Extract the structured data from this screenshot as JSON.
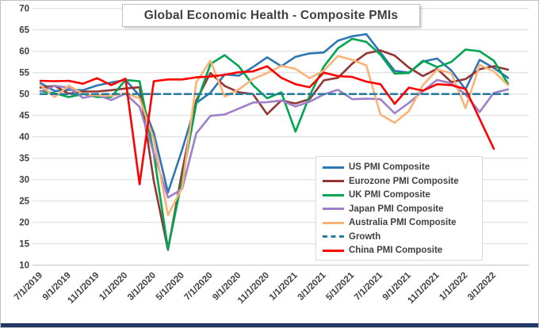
{
  "title": "Global Economic Health - Composite PMIs",
  "colors": {
    "background": "#FFFFFF",
    "grid": "#D9D9D9",
    "axis_line": "#BFBFBF",
    "axis_text": "#404040",
    "title_text": "#404040",
    "border": "#BFBFBF",
    "footer_strip": "#1F3864"
  },
  "chart_data": {
    "type": "line",
    "title": "Global Economic Health - Composite PMIs",
    "xlabel": "",
    "ylabel": "",
    "ylim": [
      10,
      70
    ],
    "y_ticks": [
      10,
      15,
      20,
      25,
      30,
      35,
      40,
      45,
      50,
      55,
      60,
      65,
      70
    ],
    "grid": "horizontal",
    "legend_position": "right-center",
    "x": [
      "7/1/2019",
      "8/1/2019",
      "9/1/2019",
      "10/1/2019",
      "11/1/2019",
      "12/1/2019",
      "1/1/2020",
      "2/1/2020",
      "3/1/2020",
      "4/1/2020",
      "5/1/2020",
      "6/1/2020",
      "7/1/2020",
      "8/1/2020",
      "9/1/2020",
      "10/1/2020",
      "11/1/2020",
      "12/1/2020",
      "1/1/2021",
      "2/1/2021",
      "3/1/2021",
      "4/1/2021",
      "5/1/2021",
      "6/1/2021",
      "7/1/2021",
      "8/1/2021",
      "9/1/2021",
      "10/1/2021",
      "11/1/2021",
      "12/1/2021",
      "1/1/2022",
      "2/1/2022",
      "3/1/2022",
      "4/1/2022"
    ],
    "x_tick_labels": [
      "7/1/2019",
      "9/1/2019",
      "11/1/2019",
      "1/1/2020",
      "3/1/2020",
      "5/1/2020",
      "7/1/2020",
      "9/1/2020",
      "11/1/2020",
      "1/1/2021",
      "3/1/2021",
      "5/1/2021",
      "7/1/2021",
      "9/1/2021",
      "11/1/2021",
      "1/1/2022",
      "3/1/2022"
    ],
    "series": [
      {
        "name": "US PMI Composite",
        "color": "#2E75B6",
        "dash": false,
        "values": [
          52.6,
          50.7,
          51.0,
          50.9,
          52.0,
          52.7,
          53.3,
          49.6,
          40.9,
          27.0,
          37.0,
          47.9,
          50.3,
          54.6,
          54.3,
          56.3,
          58.6,
          56.5,
          58.7,
          59.5,
          59.7,
          62.5,
          63.5,
          64.0,
          59.7,
          55.4,
          55.0,
          57.6,
          58.3,
          55.5,
          51.1,
          58.0,
          56.1,
          53.8
        ]
      },
      {
        "name": "Eurozone PMI Composite",
        "color": "#943634",
        "dash": false,
        "values": [
          51.5,
          51.9,
          50.1,
          50.6,
          50.6,
          50.9,
          51.3,
          51.6,
          29.7,
          13.6,
          31.9,
          48.5,
          54.9,
          51.9,
          50.4,
          50.0,
          45.3,
          48.5,
          47.8,
          48.8,
          53.2,
          53.8,
          57.1,
          59.5,
          60.2,
          59.0,
          56.2,
          54.2,
          55.9,
          52.8,
          53.5,
          55.8,
          56.5,
          55.7
        ]
      },
      {
        "name": "UK PMI Composite",
        "color": "#00A551",
        "dash": false,
        "values": [
          50.7,
          50.2,
          49.3,
          50.0,
          49.3,
          49.3,
          53.3,
          53.0,
          36.0,
          13.8,
          30.0,
          47.7,
          57.0,
          59.1,
          56.5,
          52.1,
          49.0,
          50.4,
          41.2,
          49.6,
          56.4,
          60.7,
          62.9,
          62.2,
          59.2,
          54.8,
          54.9,
          57.8,
          56.3,
          57.5,
          60.4,
          60.0,
          57.8,
          52.4
        ]
      },
      {
        "name": "Japan PMI Composite",
        "color": "#9E7FC9",
        "dash": false,
        "values": [
          50.6,
          51.9,
          51.5,
          49.1,
          49.8,
          48.6,
          50.1,
          47.0,
          36.2,
          25.8,
          27.8,
          40.8,
          44.9,
          45.2,
          46.6,
          48.0,
          48.1,
          48.5,
          47.1,
          48.2,
          49.9,
          51.0,
          48.8,
          48.9,
          48.8,
          45.5,
          47.9,
          50.7,
          53.3,
          52.5,
          49.9,
          45.8,
          50.3,
          51.1
        ]
      },
      {
        "name": "Australia PMI Composite",
        "color": "#F9B377",
        "dash": false,
        "values": [
          52.1,
          49.3,
          52.0,
          50.0,
          49.7,
          49.6,
          50.2,
          49.0,
          39.4,
          21.7,
          28.1,
          52.7,
          57.8,
          49.4,
          51.1,
          53.5,
          54.9,
          56.6,
          55.9,
          53.7,
          55.5,
          58.9,
          58.0,
          56.7,
          45.2,
          43.3,
          46.0,
          52.1,
          55.7,
          54.9,
          46.7,
          56.8,
          55.3,
          52.1
        ]
      },
      {
        "name": "Growth",
        "color": "#2B7C9E",
        "dash": true,
        "values": [
          50,
          50,
          50,
          50,
          50,
          50,
          50,
          50,
          50,
          50,
          50,
          50,
          50,
          50,
          50,
          50,
          50,
          50,
          50,
          50,
          50,
          50,
          50,
          50,
          50,
          50,
          50,
          50,
          50,
          50,
          50,
          50,
          50,
          50
        ]
      },
      {
        "name": "China PMI Composite",
        "color": "#FE0000",
        "dash": false,
        "values": [
          53.1,
          53.0,
          53.1,
          52.4,
          53.7,
          52.1,
          53.6,
          28.9,
          53.0,
          53.4,
          53.4,
          53.9,
          54.1,
          54.5,
          55.1,
          55.3,
          56.5,
          53.8,
          52.3,
          51.6,
          55.0,
          54.2,
          54.0,
          52.9,
          52.3,
          47.7,
          51.5,
          50.8,
          52.3,
          52.1,
          51.2,
          44.2,
          37.2,
          null
        ]
      }
    ]
  }
}
